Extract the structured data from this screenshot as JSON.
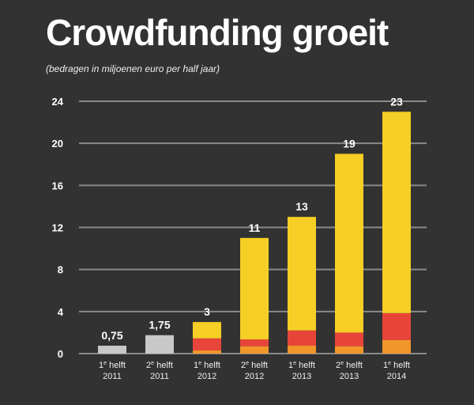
{
  "chart_data": {
    "type": "stacked-bar",
    "title": "Crowdfunding groeit",
    "subtitle": "(bedragen in miljoenen euro per half jaar)",
    "categories": [
      [
        "1e helft",
        "2011"
      ],
      [
        "2e helft",
        "2011"
      ],
      [
        "1e helft",
        "2012"
      ],
      [
        "2e helft",
        "2012"
      ],
      [
        "1e helft",
        "2013"
      ],
      [
        "2e helft",
        "2013"
      ],
      [
        "1e helft",
        "2014"
      ]
    ],
    "totals": [
      0.75,
      1.75,
      3,
      11,
      13,
      19,
      23
    ],
    "total_labels": [
      "0,75",
      "1,75",
      "3",
      "11",
      "13",
      "19",
      "23"
    ],
    "series": [
      {
        "color": "#c8c8c8",
        "values": [
          0.75,
          1.75,
          0,
          0,
          0,
          0,
          0
        ]
      },
      {
        "color": "#f0962a",
        "values": [
          0,
          0,
          0.3,
          0.7,
          0.75,
          0.7,
          1.3
        ]
      },
      {
        "color": "#e8453a",
        "values": [
          0,
          0,
          1.15,
          0.65,
          1.45,
          1.3,
          2.55
        ]
      },
      {
        "color": "#f5cf25",
        "values": [
          0,
          0,
          1.55,
          9.65,
          10.8,
          17.0,
          19.15
        ]
      }
    ],
    "ylim": [
      0,
      24
    ],
    "yticks": [
      0,
      4,
      8,
      12,
      16,
      20,
      24
    ],
    "grid": true,
    "legend": "none"
  }
}
